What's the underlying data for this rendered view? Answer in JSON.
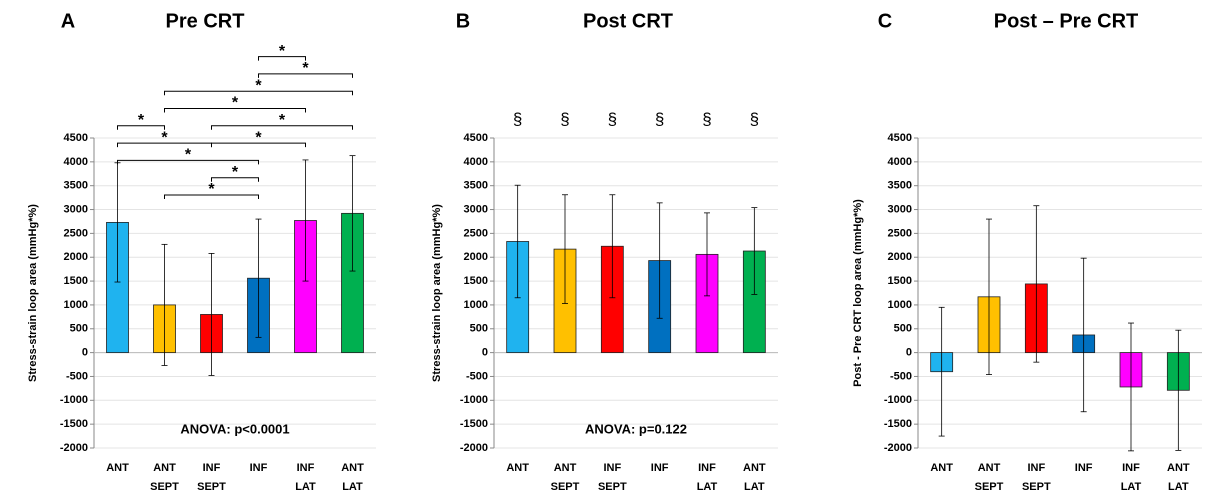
{
  "chart_data": [
    {
      "type": "bar",
      "panel": "A",
      "title": "Pre CRT",
      "y_label": "Stress-strain loop area (mmHg*%)",
      "categories": [
        [
          "ANT"
        ],
        [
          "ANT",
          "SEPT"
        ],
        [
          "INF",
          "SEPT"
        ],
        [
          "INF"
        ],
        [
          "INF",
          "LAT"
        ],
        [
          "ANT",
          "LAT"
        ]
      ],
      "values": [
        2730,
        1000,
        800,
        1560,
        2770,
        2920
      ],
      "errors": [
        1250,
        1270,
        1280,
        1240,
        1270,
        1210
      ],
      "colors": [
        "#1fb3ef",
        "#ffc000",
        "#ff0000",
        "#0070c0",
        "#ff00ff",
        "#00b050"
      ],
      "ylim": [
        -2000,
        4500
      ],
      "yticks": [
        -2000,
        -1500,
        -1000,
        -500,
        0,
        500,
        1000,
        1500,
        2000,
        2500,
        3000,
        3500,
        4000,
        4500
      ],
      "grid": true,
      "annotation": "ANOVA: p<0.0001",
      "significance": [
        {
          "from": 1,
          "to": 3,
          "label": "*"
        },
        {
          "from": 2,
          "to": 3,
          "label": "*"
        },
        {
          "from": 0,
          "to": 3,
          "label": "*"
        },
        {
          "from": 0,
          "to": 2,
          "label": "*"
        },
        {
          "from": 2,
          "to": 4,
          "label": "*"
        },
        {
          "from": 0,
          "to": 1,
          "label": "*"
        },
        {
          "from": 2,
          "to": 5,
          "label": "*"
        },
        {
          "from": 1,
          "to": 4,
          "label": "*"
        },
        {
          "from": 1,
          "to": 5,
          "label": "*"
        },
        {
          "from": 3,
          "to": 5,
          "label": "*"
        },
        {
          "from": 3,
          "to": 4,
          "label": "*"
        }
      ]
    },
    {
      "type": "bar",
      "panel": "B",
      "title": "Post CRT",
      "y_label": "Stress-strain loop area (mmHg*%)",
      "categories": [
        [
          "ANT"
        ],
        [
          "ANT",
          "SEPT"
        ],
        [
          "INF",
          "SEPT"
        ],
        [
          "INF"
        ],
        [
          "INF",
          "LAT"
        ],
        [
          "ANT",
          "LAT"
        ]
      ],
      "values": [
        2330,
        2170,
        2230,
        1930,
        2060,
        2130
      ],
      "errors": [
        1180,
        1140,
        1080,
        1210,
        870,
        910
      ],
      "colors": [
        "#1fb3ef",
        "#ffc000",
        "#ff0000",
        "#0070c0",
        "#ff00ff",
        "#00b050"
      ],
      "ylim": [
        -2000,
        4500
      ],
      "yticks": [
        -2000,
        -1500,
        -1000,
        -500,
        0,
        500,
        1000,
        1500,
        2000,
        2500,
        3000,
        3500,
        4000,
        4500
      ],
      "grid": true,
      "annotation": "ANOVA: p=0.122",
      "bar_marks": [
        "§",
        "§",
        "§",
        "§",
        "§",
        "§"
      ]
    },
    {
      "type": "bar",
      "panel": "C",
      "title": "Post – Pre CRT",
      "y_label": "Post - Pre CRT  loop area (mmHg*%)",
      "categories": [
        [
          "ANT"
        ],
        [
          "ANT",
          "SEPT"
        ],
        [
          "INF",
          "SEPT"
        ],
        [
          "INF"
        ],
        [
          "INF",
          "LAT"
        ],
        [
          "ANT",
          "LAT"
        ]
      ],
      "values": [
        -400,
        1170,
        1440,
        370,
        -720,
        -790
      ],
      "errors": [
        1350,
        1630,
        1640,
        1610,
        1340,
        1260
      ],
      "colors": [
        "#1fb3ef",
        "#ffc000",
        "#ff0000",
        "#0070c0",
        "#ff00ff",
        "#00b050"
      ],
      "ylim": [
        -2000,
        4500
      ],
      "yticks": [
        -2000,
        -1500,
        -1000,
        -500,
        0,
        500,
        1000,
        1500,
        2000,
        2500,
        3000,
        3500,
        4000,
        4500
      ],
      "grid": true
    }
  ]
}
